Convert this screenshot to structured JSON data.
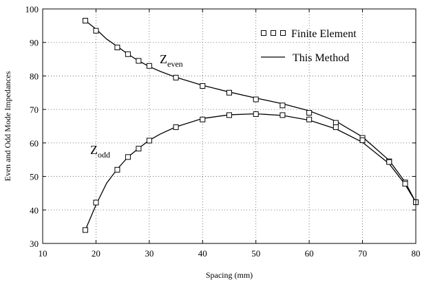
{
  "chart_data": {
    "type": "line",
    "xlabel": "Spacing (mm)",
    "ylabel": "Even and Odd Mode Impedances",
    "xlim": [
      10,
      80
    ],
    "ylim": [
      30,
      100
    ],
    "xticks": [
      "10",
      "20",
      "30",
      "40",
      "50",
      "60",
      "70",
      "80"
    ],
    "yticks": [
      "30",
      "40",
      "50",
      "60",
      "70",
      "80",
      "90",
      "100"
    ],
    "grid": true,
    "legend_position": "top-right",
    "legend": {
      "fe_label": "Finite Element",
      "method_label": "This Method"
    },
    "annotations": {
      "even_main": "Z",
      "even_sub": "even",
      "odd_main": "Z",
      "odd_sub": "odd"
    },
    "series": [
      {
        "name": "Z_even",
        "finite_element": {
          "x": [
            18,
            20,
            24,
            26,
            28,
            30,
            35,
            40,
            45,
            50,
            55,
            60,
            65,
            70,
            75,
            78,
            80
          ],
          "y": [
            96.5,
            93.5,
            88.5,
            86.5,
            84.5,
            83,
            79.5,
            77,
            75,
            73,
            71.2,
            69,
            66,
            61.5,
            54.5,
            48.2,
            42.3
          ]
        },
        "this_method": {
          "x": [
            18,
            20,
            22,
            24,
            26,
            28,
            30,
            32,
            35,
            40,
            45,
            50,
            55,
            60,
            65,
            70,
            75,
            78,
            80
          ],
          "y": [
            96.5,
            94,
            91,
            88.8,
            86.5,
            84.5,
            82.8,
            81.4,
            79.6,
            77.2,
            75.2,
            73.4,
            71.7,
            69.6,
            66.5,
            61.8,
            54.8,
            48.3,
            42.3
          ]
        }
      },
      {
        "name": "Z_odd",
        "finite_element": {
          "x": [
            18,
            20,
            24,
            26,
            28,
            30,
            35,
            40,
            45,
            50,
            55,
            60,
            65,
            70,
            75,
            78,
            80
          ],
          "y": [
            34,
            42.2,
            52,
            55.8,
            58.3,
            60.7,
            64.7,
            67,
            68.3,
            68.6,
            68.3,
            67,
            64.7,
            60.8,
            54.3,
            47.8,
            42.3
          ]
        },
        "this_method": {
          "x": [
            18,
            20,
            22,
            24,
            26,
            28,
            30,
            32,
            35,
            40,
            45,
            50,
            55,
            60,
            65,
            70,
            75,
            78,
            80
          ],
          "y": [
            34,
            41.5,
            48,
            52.2,
            55.8,
            58.4,
            60.8,
            62.6,
            64.8,
            67.3,
            68.4,
            68.7,
            68.2,
            66.8,
            64.2,
            60.2,
            53.8,
            47.6,
            42.3
          ]
        }
      }
    ]
  }
}
